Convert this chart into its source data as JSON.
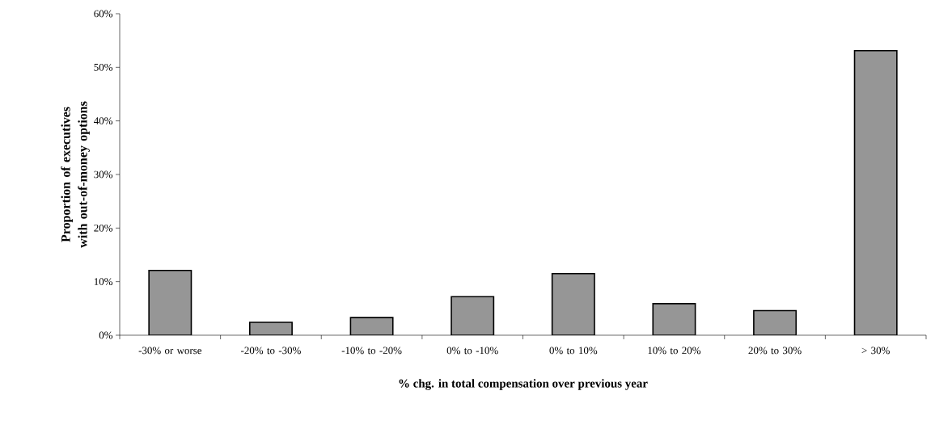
{
  "chart_data": {
    "type": "bar",
    "xlabel": "% chg. in total compensation over previous year",
    "ylabel": "Proportion of executives with out-of-money options",
    "categories": [
      "-30% or worse",
      "-20% to -30%",
      "-10% to -20%",
      "0% to -10%",
      "0% to 10%",
      "10% to 20%",
      "20% to 30%",
      "> 30%"
    ],
    "values": [
      12.1,
      2.4,
      3.3,
      7.2,
      11.5,
      5.9,
      4.6,
      53.1
    ],
    "color": "#969696",
    "ylim": [
      0,
      60
    ],
    "yticks": [
      {
        "value": 0,
        "label": "0%"
      },
      {
        "value": 10,
        "label": "10%"
      },
      {
        "value": 20,
        "label": "20%"
      },
      {
        "value": 30,
        "label": "30%"
      },
      {
        "value": 40,
        "label": "40%"
      },
      {
        "value": 50,
        "label": "50%"
      },
      {
        "value": 60,
        "label": "60%"
      }
    ],
    "grid": false
  }
}
